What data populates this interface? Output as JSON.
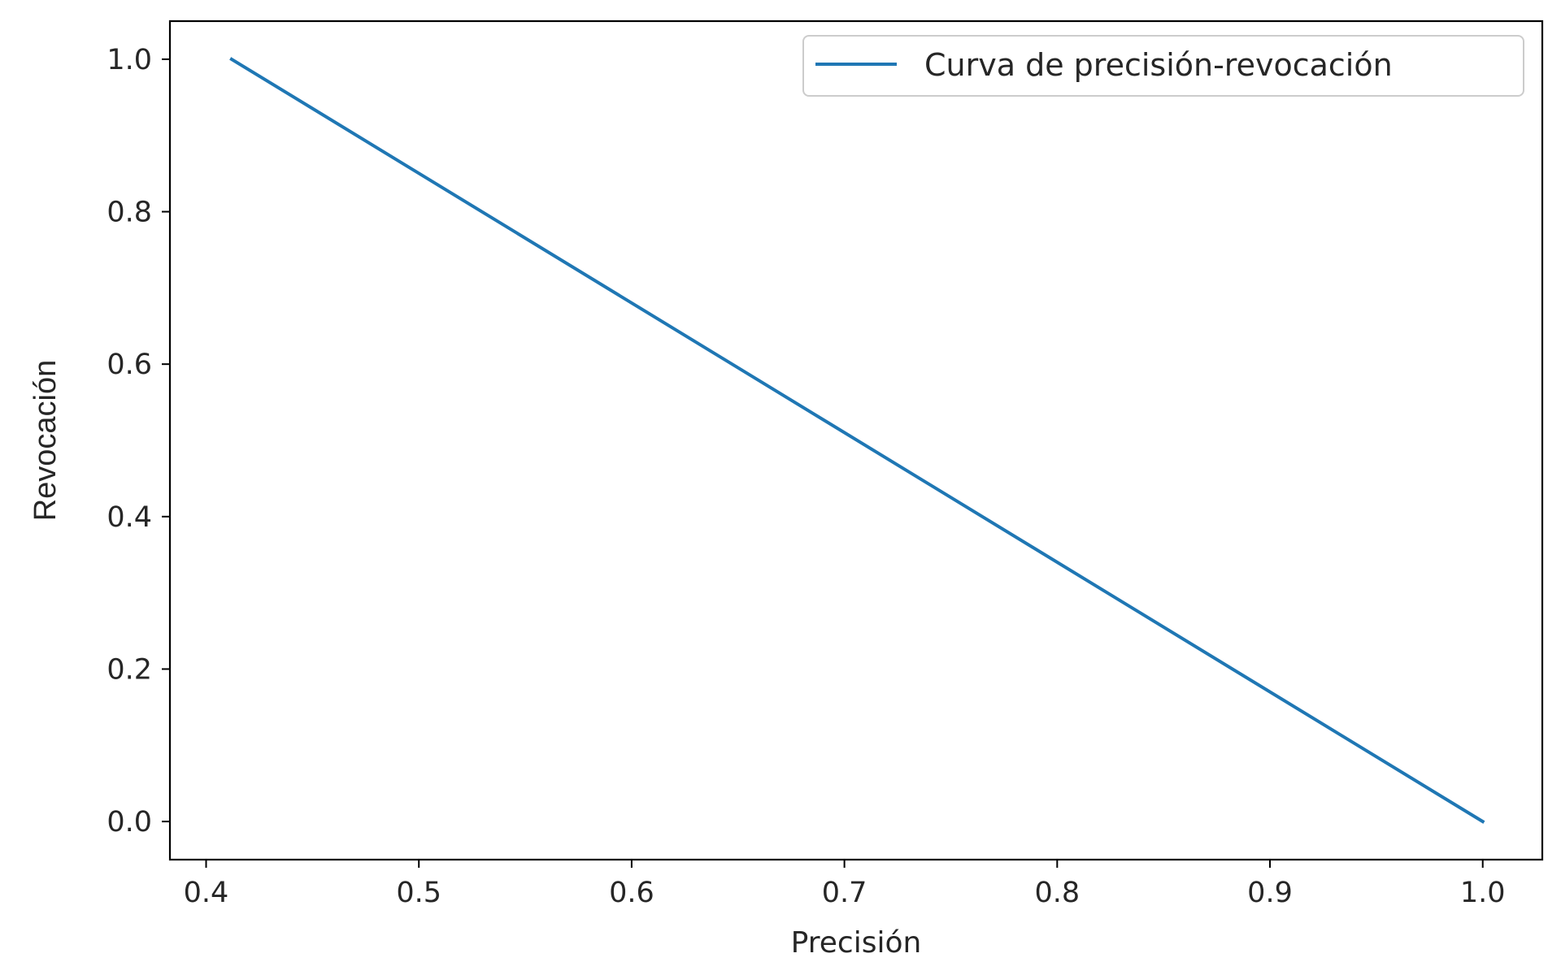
{
  "chart_data": {
    "type": "line",
    "title": "",
    "xlabel": "Precisión",
    "ylabel": "Revocación",
    "xlim": [
      0.383,
      1.028
    ],
    "ylim": [
      -0.05,
      1.05
    ],
    "xticks": [
      0.4,
      0.5,
      0.6,
      0.7,
      0.8,
      0.9,
      1.0
    ],
    "xtick_labels": [
      "0.4",
      "0.5",
      "0.6",
      "0.7",
      "0.8",
      "0.9",
      "1.0"
    ],
    "yticks": [
      0.0,
      0.2,
      0.4,
      0.6,
      0.8,
      1.0
    ],
    "ytick_labels": [
      "0.0",
      "0.2",
      "0.4",
      "0.6",
      "0.8",
      "1.0"
    ],
    "grid": false,
    "legend": {
      "placement": "top-right"
    },
    "series": [
      {
        "name": "Curva de precisión-revocación",
        "color": "#1f77b4",
        "x": [
          0.412,
          1.0
        ],
        "y": [
          1.0,
          0.0
        ]
      }
    ]
  }
}
